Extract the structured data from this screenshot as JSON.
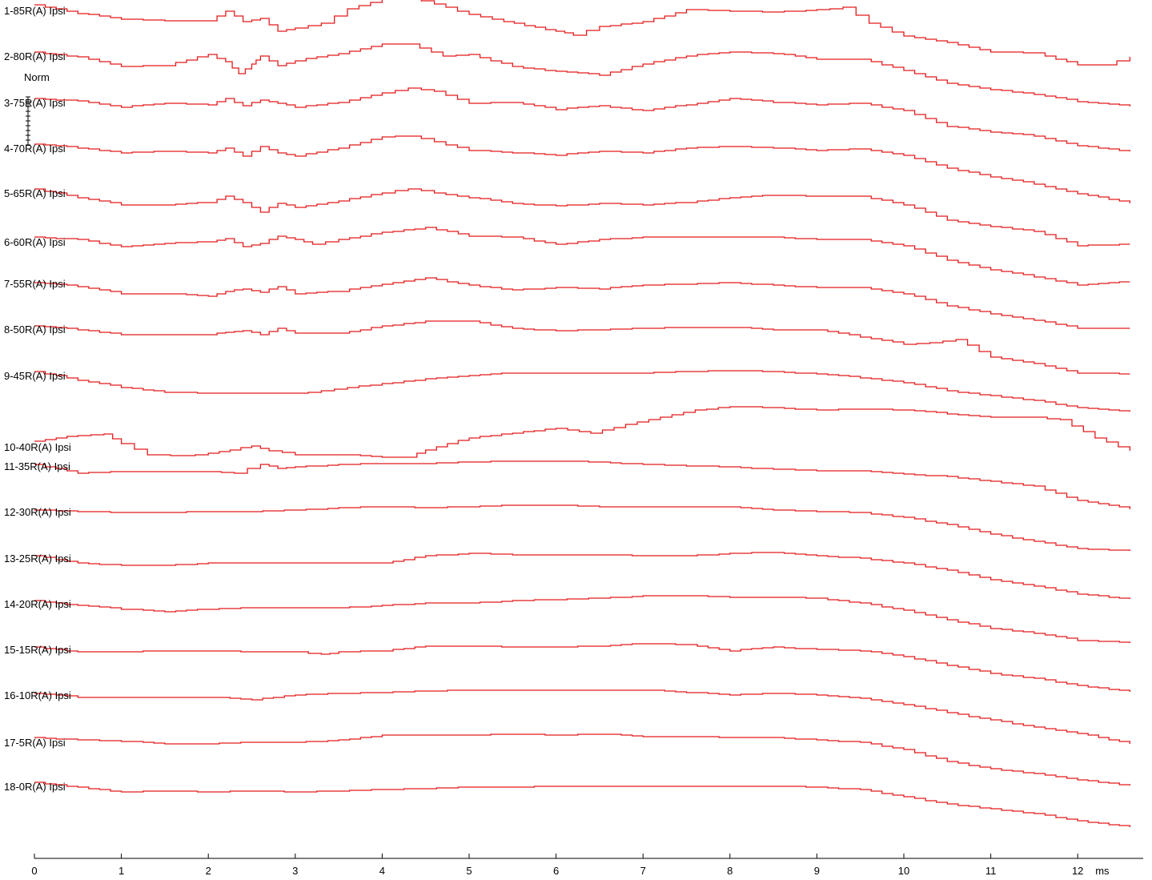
{
  "chart_data": {
    "type": "line",
    "xlabel": "",
    "x_unit": "ms",
    "xlim": [
      0,
      12.6
    ],
    "x_ticks": [
      0,
      1,
      2,
      3,
      4,
      5,
      6,
      7,
      8,
      9,
      10,
      11,
      12
    ],
    "scale_label": "Norm",
    "line_color": "#e31a1c",
    "grid": false,
    "series": [
      {
        "name": "1-85R(A) Ipsi",
        "x": [
          0,
          0.5,
          1,
          1.5,
          2,
          2.2,
          2.4,
          2.6,
          2.8,
          3,
          3.3,
          3.6,
          4,
          4.3,
          4.6,
          5,
          5.4,
          6,
          6.2,
          6.5,
          7,
          7.5,
          8,
          8.5,
          9,
          9.3,
          9.6,
          10,
          10.5,
          11,
          11.5,
          12,
          12.3,
          12.6
        ],
        "y": [
          0,
          -0.14,
          -0.24,
          -0.26,
          -0.26,
          -0.1,
          -0.28,
          -0.22,
          -0.44,
          -0.38,
          -0.3,
          -0.06,
          0.1,
          0.12,
          0.02,
          -0.16,
          -0.28,
          -0.44,
          -0.5,
          -0.36,
          -0.28,
          -0.08,
          -0.1,
          -0.12,
          -0.08,
          -0.04,
          -0.3,
          -0.52,
          -0.62,
          -0.78,
          -0.8,
          -1.0,
          -1.0,
          -0.86
        ]
      },
      {
        "name": "2-80R(A) Ipsi",
        "x": [
          0,
          0.5,
          1,
          1.5,
          2,
          2.2,
          2.35,
          2.5,
          2.6,
          2.8,
          3,
          3.5,
          4,
          4.3,
          4.7,
          5,
          5.5,
          6,
          6.5,
          7,
          7.5,
          8,
          8.5,
          9,
          9.5,
          10,
          10.5,
          11,
          11.5,
          12,
          12.6
        ],
        "y": [
          0,
          -0.08,
          -0.24,
          -0.22,
          -0.04,
          -0.16,
          -0.36,
          -0.2,
          -0.06,
          -0.22,
          -0.14,
          -0.02,
          0.14,
          0.14,
          -0.06,
          -0.04,
          -0.24,
          -0.32,
          -0.38,
          -0.2,
          -0.06,
          0.0,
          -0.02,
          -0.12,
          -0.12,
          -0.3,
          -0.52,
          -0.62,
          -0.7,
          -0.82,
          -0.9
        ]
      },
      {
        "name": "3-75R(A) Ipsi",
        "x": [
          0,
          0.5,
          1,
          1.5,
          2,
          2.2,
          2.4,
          2.6,
          2.8,
          3,
          3.5,
          4,
          4.3,
          4.6,
          5,
          5.5,
          6,
          6.5,
          7,
          7.5,
          8,
          8.5,
          9,
          9.5,
          10,
          10.5,
          11,
          11.5,
          12,
          12.6
        ],
        "y": [
          0,
          -0.04,
          -0.14,
          -0.08,
          -0.1,
          0.0,
          -0.12,
          -0.02,
          -0.08,
          -0.14,
          -0.06,
          0.1,
          0.18,
          0.12,
          -0.08,
          -0.06,
          -0.18,
          -0.12,
          -0.2,
          -0.1,
          0.0,
          -0.06,
          -0.1,
          -0.08,
          -0.2,
          -0.46,
          -0.56,
          -0.62,
          -0.78,
          -0.88
        ]
      },
      {
        "name": "4-70R(A) Ipsi",
        "x": [
          0,
          0.5,
          1,
          1.5,
          2,
          2.2,
          2.4,
          2.6,
          2.8,
          3,
          3.5,
          4,
          4.3,
          4.6,
          5,
          5.5,
          6,
          6.5,
          7,
          7.5,
          8,
          8.5,
          9,
          9.5,
          10,
          10.5,
          11,
          11.5,
          12,
          12.6
        ],
        "y": [
          0,
          -0.06,
          -0.14,
          -0.12,
          -0.14,
          -0.06,
          -0.2,
          -0.04,
          -0.14,
          -0.2,
          -0.06,
          0.12,
          0.14,
          0.04,
          -0.1,
          -0.14,
          -0.18,
          -0.12,
          -0.14,
          -0.06,
          -0.04,
          -0.06,
          -0.1,
          -0.08,
          -0.18,
          -0.4,
          -0.54,
          -0.66,
          -0.82,
          -0.98
        ]
      },
      {
        "name": "5-65R(A) Ipsi",
        "x": [
          0,
          0.5,
          1,
          1.5,
          2,
          2.2,
          2.4,
          2.6,
          2.8,
          3,
          3.5,
          4,
          4.3,
          4.6,
          5,
          5.5,
          6,
          6.5,
          7,
          7.5,
          8,
          8.5,
          9,
          9.5,
          10,
          10.5,
          11,
          11.5,
          12,
          12.6
        ],
        "y": [
          0,
          -0.14,
          -0.26,
          -0.26,
          -0.22,
          -0.12,
          -0.22,
          -0.38,
          -0.24,
          -0.3,
          -0.2,
          -0.06,
          0.0,
          -0.06,
          -0.14,
          -0.24,
          -0.28,
          -0.24,
          -0.26,
          -0.22,
          -0.14,
          -0.1,
          -0.12,
          -0.12,
          -0.26,
          -0.52,
          -0.62,
          -0.7,
          -0.94,
          -0.92
        ]
      },
      {
        "name": "6-60R(A) Ipsi",
        "x": [
          0,
          0.5,
          1,
          1.5,
          2,
          2.2,
          2.4,
          2.6,
          2.8,
          3,
          3.2,
          3.5,
          4,
          4.5,
          5,
          5.5,
          6,
          6.5,
          7,
          7.5,
          8,
          8.5,
          9,
          9.5,
          10,
          10.5,
          11,
          11.5,
          12,
          12.6
        ],
        "y": [
          0,
          -0.04,
          -0.16,
          -0.1,
          -0.08,
          -0.02,
          -0.16,
          -0.1,
          0.02,
          -0.04,
          -0.12,
          -0.04,
          0.08,
          0.16,
          0.02,
          0.0,
          -0.12,
          -0.04,
          0.0,
          0.0,
          0.0,
          0.0,
          -0.04,
          -0.04,
          -0.14,
          -0.38,
          -0.54,
          -0.66,
          -0.8,
          -0.74
        ]
      },
      {
        "name": "7-55R(A) Ipsi",
        "x": [
          0,
          0.5,
          1,
          1.5,
          2,
          2.2,
          2.4,
          2.6,
          2.8,
          3,
          3.5,
          4,
          4.5,
          5,
          5.5,
          6,
          6.5,
          7,
          7.5,
          8,
          8.5,
          9,
          9.5,
          10,
          10.5,
          11,
          11.5,
          12,
          12.6
        ],
        "y": [
          0,
          -0.06,
          -0.18,
          -0.18,
          -0.22,
          -0.14,
          -0.1,
          -0.16,
          -0.06,
          -0.18,
          -0.14,
          -0.02,
          0.08,
          -0.04,
          -0.12,
          -0.08,
          -0.1,
          -0.04,
          -0.02,
          0.0,
          -0.04,
          -0.08,
          -0.08,
          -0.18,
          -0.38,
          -0.52,
          -0.62,
          -0.76,
          -0.76
        ]
      },
      {
        "name": "8-50R(A) Ipsi",
        "x": [
          0,
          0.5,
          1,
          1.5,
          2,
          2.2,
          2.4,
          2.6,
          2.8,
          3,
          3.5,
          4,
          4.5,
          5,
          5.5,
          6,
          6.5,
          7,
          7.5,
          8,
          8.5,
          9,
          9.5,
          10,
          10.3,
          10.6,
          11,
          11.5,
          12,
          12.6
        ],
        "y": [
          0,
          -0.06,
          -0.14,
          -0.14,
          -0.14,
          -0.1,
          -0.08,
          -0.14,
          -0.04,
          -0.12,
          -0.12,
          0.0,
          0.08,
          0.08,
          -0.04,
          -0.08,
          -0.06,
          -0.04,
          -0.02,
          -0.02,
          -0.06,
          -0.06,
          -0.18,
          -0.3,
          -0.28,
          -0.22,
          -0.52,
          -0.62,
          -0.78,
          -0.8
        ]
      },
      {
        "name": "9-45R(A) Ipsi",
        "x": [
          0,
          0.5,
          1,
          1.5,
          2,
          2.5,
          3,
          3.3,
          3.6,
          4,
          4.5,
          5,
          5.5,
          6,
          6.5,
          7,
          7.5,
          8,
          8.5,
          9,
          9.5,
          10,
          10.5,
          11,
          11.5,
          12,
          12.6
        ],
        "y": [
          0,
          -0.14,
          -0.26,
          -0.34,
          -0.36,
          -0.36,
          -0.36,
          -0.32,
          -0.26,
          -0.2,
          -0.12,
          -0.06,
          -0.02,
          -0.02,
          -0.02,
          -0.02,
          0.0,
          0.02,
          0.0,
          -0.04,
          -0.1,
          -0.18,
          -0.32,
          -0.4,
          -0.48,
          -0.6,
          -0.66
        ]
      },
      {
        "name": "10-40R(A) Ipsi",
        "x": [
          0,
          0.5,
          0.8,
          1,
          1.3,
          1.7,
          2,
          2.5,
          2.7,
          3,
          3.5,
          4,
          4.3,
          4.5,
          5,
          5.5,
          6,
          6.4,
          6.8,
          7.2,
          7.6,
          8,
          8.5,
          9,
          9.5,
          10,
          10.5,
          11,
          11.5,
          11.8,
          12.2,
          12.6
        ],
        "y": [
          0,
          0.1,
          0.12,
          -0.04,
          -0.22,
          -0.24,
          -0.2,
          -0.08,
          -0.16,
          -0.22,
          -0.22,
          -0.26,
          -0.26,
          -0.14,
          0.06,
          0.14,
          0.22,
          0.14,
          0.28,
          0.4,
          0.52,
          0.58,
          0.56,
          0.52,
          0.54,
          0.52,
          0.46,
          0.4,
          0.4,
          0.36,
          0.06,
          -0.16
        ]
      },
      {
        "name": "11-35R(A) Ipsi",
        "x": [
          0,
          0.5,
          1,
          1.5,
          2,
          2.3,
          2.6,
          2.8,
          3,
          3.5,
          4,
          4.5,
          5,
          5.5,
          6,
          6.5,
          7,
          7.5,
          8,
          8.5,
          9,
          9.5,
          10,
          10.5,
          11,
          11.5,
          12,
          12.6
        ],
        "y": [
          0,
          -0.14,
          -0.12,
          -0.12,
          -0.12,
          -0.14,
          0.0,
          -0.06,
          -0.04,
          0.0,
          0.02,
          0.02,
          0.04,
          0.06,
          0.06,
          0.04,
          0.0,
          -0.02,
          -0.04,
          -0.08,
          -0.1,
          -0.1,
          -0.16,
          -0.2,
          -0.28,
          -0.36,
          -0.6,
          -0.74
        ]
      },
      {
        "name": "12-30R(A) Ipsi",
        "x": [
          0,
          0.5,
          1,
          1.5,
          2,
          2.5,
          3,
          3.5,
          4,
          4.5,
          5,
          5.5,
          6,
          6.5,
          7,
          7.5,
          8,
          8.5,
          9,
          9.5,
          10,
          10.5,
          11,
          11.5,
          12,
          12.6
        ],
        "y": [
          0,
          -0.02,
          -0.04,
          -0.04,
          -0.02,
          -0.02,
          0.0,
          0.04,
          0.06,
          0.04,
          0.06,
          0.08,
          0.08,
          0.06,
          0.06,
          0.06,
          0.06,
          0.0,
          -0.02,
          -0.04,
          -0.12,
          -0.24,
          -0.4,
          -0.52,
          -0.64,
          -0.68
        ]
      },
      {
        "name": "13-25R(A) Ipsi",
        "x": [
          0,
          0.5,
          1,
          1.5,
          2,
          2.5,
          3,
          3.5,
          4,
          4.5,
          5,
          5.5,
          6,
          6.5,
          7,
          7.5,
          8,
          8.5,
          9,
          9.5,
          10,
          10.5,
          11,
          11.5,
          12,
          12.6
        ],
        "y": [
          0,
          -0.12,
          -0.16,
          -0.16,
          -0.12,
          -0.12,
          -0.12,
          -0.12,
          -0.12,
          0.0,
          0.04,
          0.02,
          0.02,
          0.02,
          0.0,
          0.0,
          0.04,
          0.06,
          0.0,
          -0.04,
          -0.12,
          -0.24,
          -0.4,
          -0.5,
          -0.64,
          -0.72
        ]
      },
      {
        "name": "14-20R(A) Ipsi",
        "x": [
          0,
          0.5,
          1,
          1.5,
          2,
          2.5,
          3,
          3.5,
          4,
          4.5,
          5,
          5.5,
          6,
          6.5,
          7,
          7.5,
          8,
          8.5,
          9,
          9.5,
          10,
          10.5,
          11,
          11.5,
          12,
          12.6
        ],
        "y": [
          0,
          -0.08,
          -0.14,
          -0.18,
          -0.14,
          -0.12,
          -0.12,
          -0.12,
          -0.08,
          -0.04,
          -0.04,
          0.0,
          0.02,
          0.04,
          0.08,
          0.08,
          0.06,
          0.06,
          0.04,
          -0.04,
          -0.16,
          -0.32,
          -0.46,
          -0.54,
          -0.66,
          -0.7
        ]
      },
      {
        "name": "15-15R(A) Ipsi",
        "x": [
          0,
          0.5,
          1,
          1.5,
          2,
          2.5,
          3,
          3.3,
          3.5,
          4,
          4.5,
          5,
          5.5,
          6,
          6.5,
          7,
          7.5,
          8,
          8.5,
          9,
          9.5,
          10,
          10.5,
          11,
          11.5,
          12,
          12.6
        ],
        "y": [
          0,
          -0.08,
          -0.08,
          -0.06,
          -0.06,
          -0.08,
          -0.08,
          -0.12,
          -0.08,
          -0.06,
          0.02,
          0.02,
          0.0,
          0.0,
          0.02,
          0.06,
          0.04,
          -0.06,
          0.0,
          -0.04,
          -0.06,
          -0.16,
          -0.3,
          -0.44,
          -0.52,
          -0.64,
          -0.74
        ]
      },
      {
        "name": "16-10R(A) Ipsi",
        "x": [
          0,
          0.5,
          1,
          1.5,
          2,
          2.5,
          3,
          3.5,
          4,
          4.5,
          5,
          5.5,
          6,
          6.5,
          7,
          7.5,
          8,
          8.5,
          9,
          9.5,
          10,
          10.5,
          11,
          11.5,
          12,
          12.6
        ],
        "y": [
          0,
          -0.06,
          -0.06,
          -0.06,
          -0.06,
          -0.1,
          -0.02,
          0.0,
          0.02,
          0.04,
          0.06,
          0.06,
          0.06,
          0.06,
          0.06,
          0.02,
          -0.02,
          0.0,
          -0.02,
          -0.08,
          -0.18,
          -0.32,
          -0.44,
          -0.56,
          -0.66,
          -0.84
        ]
      },
      {
        "name": "17-5R(A) Ipsi",
        "x": [
          0,
          0.5,
          1,
          1.5,
          2,
          2.5,
          3,
          3.5,
          4,
          4.5,
          5,
          5.5,
          6,
          6.5,
          7,
          7.5,
          8,
          8.5,
          9,
          9.5,
          10,
          10.5,
          11,
          11.5,
          12,
          12.6
        ],
        "y": [
          0,
          -0.04,
          -0.06,
          -0.1,
          -0.1,
          -0.08,
          -0.08,
          -0.04,
          0.04,
          0.04,
          0.04,
          0.06,
          0.04,
          0.06,
          0.02,
          0.02,
          0.0,
          0.0,
          -0.04,
          -0.08,
          -0.2,
          -0.4,
          -0.52,
          -0.6,
          -0.7,
          -0.8
        ]
      },
      {
        "name": "18-0R(A) Ipsi",
        "x": [
          0,
          0.5,
          1,
          1.5,
          2,
          2.5,
          3,
          3.5,
          4,
          4.5,
          5,
          5.5,
          6,
          6.5,
          7,
          7.5,
          8,
          8.5,
          9,
          9.5,
          10,
          10.5,
          11,
          11.5,
          12,
          12.6
        ],
        "y": [
          0,
          -0.08,
          -0.16,
          -0.14,
          -0.16,
          -0.14,
          -0.16,
          -0.14,
          -0.12,
          -0.1,
          -0.08,
          -0.08,
          -0.06,
          -0.06,
          -0.06,
          -0.06,
          -0.06,
          -0.06,
          -0.08,
          -0.12,
          -0.24,
          -0.36,
          -0.44,
          -0.52,
          -0.64,
          -0.74
        ]
      }
    ]
  }
}
